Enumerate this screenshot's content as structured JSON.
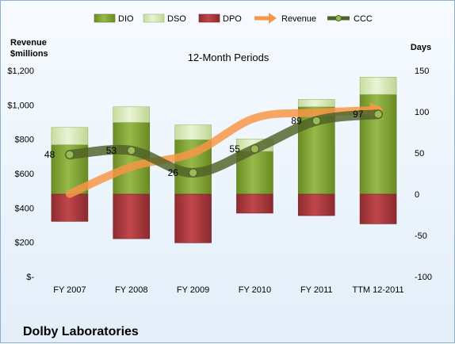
{
  "chart_data": {
    "type": "bar",
    "title": "12-Month Periods",
    "company": "Dolby Laboratories",
    "categories": [
      "FY 2007",
      "FY 2008",
      "FY 2009",
      "FY 2010",
      "FY 2011",
      "TTM 12-2011"
    ],
    "left_axis": {
      "label_line1": "Revenue",
      "label_line2": "$millions",
      "ylim": [
        0,
        1200
      ],
      "ticks": [
        0,
        200,
        400,
        600,
        800,
        1000,
        1200
      ],
      "tick_labels": [
        "$-",
        "$200",
        "$400",
        "$600",
        "$800",
        "$1,000",
        "$1,200"
      ]
    },
    "right_axis": {
      "label": "Days",
      "ylim": [
        -100,
        150
      ],
      "ticks": [
        -100,
        -50,
        0,
        50,
        100,
        150
      ],
      "tick_labels": [
        "-100",
        "-50",
        "0",
        "50",
        "100",
        "150"
      ]
    },
    "legend": [
      "DIO",
      "DSO",
      "DPO",
      "Revenue",
      "CCC"
    ],
    "series": [
      {
        "name": "DIO",
        "axis": "right",
        "values": [
          60,
          87,
          66,
          52,
          106,
          121
        ],
        "color": "#7fa02e"
      },
      {
        "name": "DSO",
        "axis": "right",
        "values": [
          21,
          19,
          18,
          15,
          9,
          21
        ],
        "color": "#cfe2a8"
      },
      {
        "name": "DPO",
        "axis": "right",
        "values": [
          -33,
          -54,
          -59,
          -23,
          -26,
          -36
        ],
        "color": "#a83a3e"
      },
      {
        "name": "Revenue",
        "axis": "left",
        "values": [
          482,
          640,
          720,
          923,
          955,
          970
        ],
        "color": "#f79646"
      },
      {
        "name": "CCC",
        "axis": "right",
        "values": [
          48,
          53,
          26,
          55,
          89,
          97
        ],
        "color": "#4f6228"
      }
    ],
    "data_labels": [
      "48",
      "53",
      "26",
      "55",
      "89",
      "97"
    ],
    "grid": false,
    "legend_position": "top"
  }
}
